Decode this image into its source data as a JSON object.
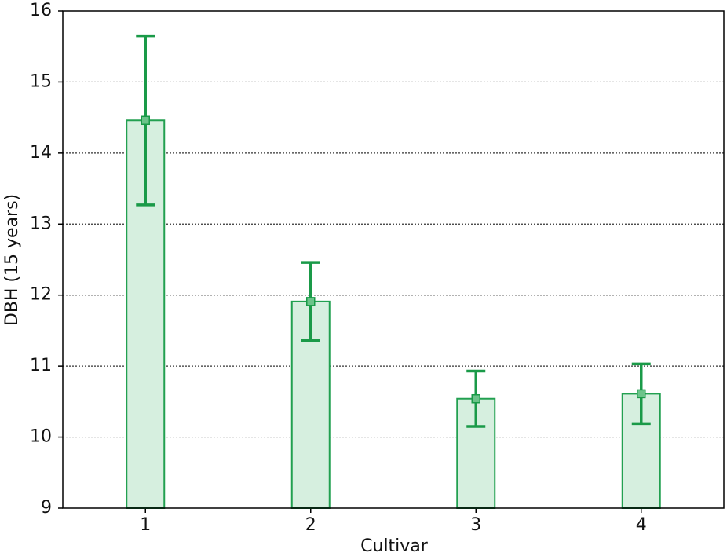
{
  "chart_data": {
    "type": "bar",
    "x_label": "Cultivar",
    "y_label": "DBH (15 years)",
    "categories": [
      "1",
      "2",
      "3",
      "4"
    ],
    "values": [
      14.46,
      11.91,
      10.54,
      10.61
    ],
    "errors": [
      1.19,
      0.55,
      0.39,
      0.42
    ],
    "color": "#22a050",
    "fill": "#d6efdf",
    "ylim": [
      9,
      16
    ],
    "yticks": [
      9,
      10,
      11,
      12,
      13,
      14,
      15,
      16
    ],
    "grid": true
  }
}
